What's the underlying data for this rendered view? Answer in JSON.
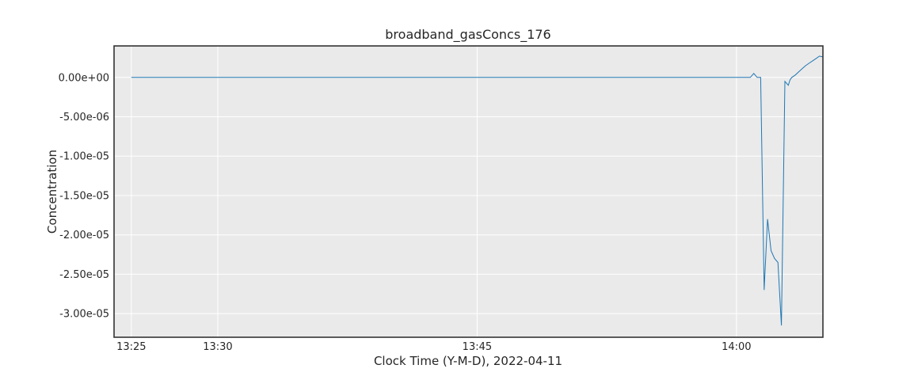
{
  "chart_data": {
    "type": "line",
    "title": "broadband_gasConcs_176",
    "xlabel": "Clock Time (Y-M-D), 2022-04-11",
    "ylabel": "Concentration",
    "x_ticks": [
      "13:25",
      "13:30",
      "13:45",
      "14:00"
    ],
    "y_ticks": [
      "0.00e+00",
      "-5.00e-06",
      "-1.00e-05",
      "-1.50e-05",
      "-2.00e-05",
      "-2.50e-05",
      "-3.00e-05"
    ],
    "xlim": [
      "13:24",
      "14:05"
    ],
    "ylim": [
      -3.3e-05,
      4e-06
    ],
    "grid": true,
    "line_color": "#1f77b4",
    "series": [
      {
        "x": [
          "13:25",
          "14:00",
          "14:00:48",
          "14:01",
          "14:01:12",
          "14:01:24",
          "14:01:36",
          "14:01:48",
          "14:02",
          "14:02:12",
          "14:02:24",
          "14:02:36",
          "14:02:48",
          "14:03",
          "14:03:06",
          "14:03:12",
          "14:03:24",
          "14:03:36",
          "14:03:48",
          "14:04",
          "14:04:12",
          "14:04:24",
          "14:04:36",
          "14:04:48",
          "14:05"
        ],
        "y": [
          0,
          0,
          0,
          5e-07,
          0,
          0,
          -2.7e-05,
          -1.8e-05,
          -2.2e-05,
          -2.3e-05,
          -2.35e-05,
          -3.15e-05,
          -5e-07,
          -1e-06,
          -3e-07,
          0,
          3e-07,
          7e-07,
          1.1e-06,
          1.5e-06,
          1.8e-06,
          2.1e-06,
          2.4e-06,
          2.7e-06,
          2.6e-06
        ]
      }
    ]
  }
}
